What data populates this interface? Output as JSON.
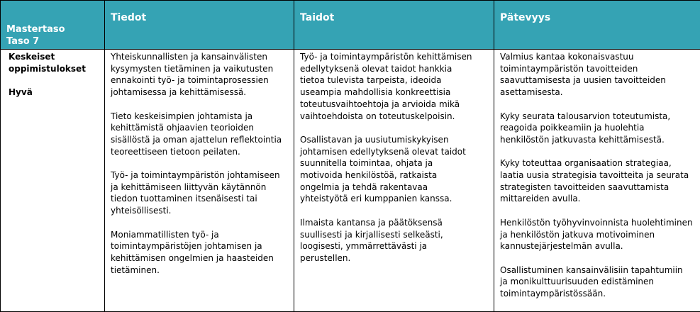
{
  "header": {
    "level_line1": "Mastertaso",
    "level_line2": "Taso 7",
    "col_knowledge": "Tiedot",
    "col_skills": "Taidot",
    "col_competence": "Pätevyys"
  },
  "row": {
    "label": "Keskeiset\noppimistulokset",
    "grade": "Hyvä",
    "knowledge": [
      "Yhteiskunnallisten ja kansainvälisten\nkysymysten tietäminen ja vaikutusten\nennakointi työ- ja toimintaprosessien\njohtamisessa ja kehittämisessä.",
      "Tieto keskeisimpien johtamista ja\nkehittämistä ohjaavien teorioiden\nsisällöstä ja oman ajattelun reflektointia\nteoreettiseen tietoon peilaten.",
      "Työ- ja toimintaympäristön johtamiseen\nja kehittämiseen liittyvän käytännön\ntiedon tuottaminen itsenäisesti tai\nyhteisöllisesti.",
      "Moniammatillisten työ- ja\ntoimintaympäristöjen johtamisen ja\nkehittämisen ongelmien ja haasteiden\ntietäminen."
    ],
    "skills": [
      "Työ- ja toimintaympäristön kehittämisen\nedellytyksenä olevat taidot hankkia\ntietoa tulevista tarpeista, ideoida\nuseampia mahdollisia konkreettisia\ntoteutusvaihtoehtoja ja arvioida mikä\nvaihtoehdoista on toteutuskelpoisin.",
      "Osallistavan ja uusiutumiskykyisen\njohtamisen edellytyksenä olevat taidot\nsuunnitella toimintaa, ohjata ja\nmotivoida henkilöstöä, ratkaista\nongelmia ja tehdä rakentavaa\nyhteistyötä eri kumppanien kanssa.",
      "Ilmaista kantansa ja päätöksensä\nsuullisesti ja kirjallisesti selkeästi,\nloogisesti, ymmärrettävästi ja\nperustellen."
    ],
    "competence": [
      "Valmius kantaa kokonaisvastuu\ntoimintaympäristön tavoitteiden\nsaavuttamisesta ja uusien tavoitteiden\nasettamisesta.",
      "Kyky seurata talousarvion toteutumista,\nreagoida poikkeamiin ja huolehtia\nhenkilöstön  jatkuvasta kehittämisestä.",
      "Kyky toteuttaa organisaation strategiaa,\nlaatia uusia strategisia tavoitteita ja seurata\nstrategisten tavoitteiden saavuttamista\nmittareiden avulla.",
      "Henkilöstön työhyvinvoinnista huolehtiminen\nja henkilöstön jatkuva motivoiminen\nkannustejärjestelmän avulla.",
      "Osallistuminen kansainvälisiin tapahtumiin\nja monikulttuurisuuden edistäminen\ntoimintaympäristössään."
    ]
  },
  "colors": {
    "header_bg": "#35a3b4",
    "header_text": "#ffffff"
  }
}
